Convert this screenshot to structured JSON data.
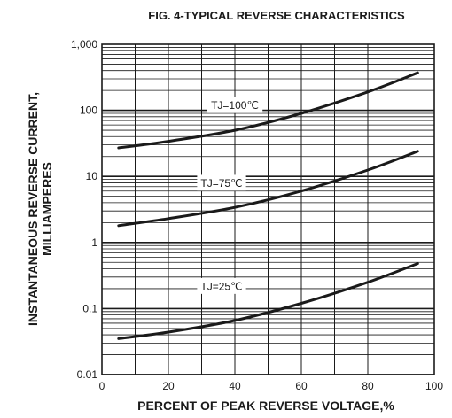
{
  "chart_data": {
    "type": "line",
    "title": "FIG. 4-TYPICAL REVERSE CHARACTERISTICS",
    "xlabel": "PERCENT OF PEAK REVERSE VOLTAGE,%",
    "ylabel_lines": [
      "INSTANTANEOUS REVERSE CURRENT,",
      "MILLIAMPERES"
    ],
    "xlim": [
      0,
      100
    ],
    "ylim": [
      0.01,
      1000
    ],
    "yscale": "log",
    "grid": true,
    "x_ticks": [
      0,
      20,
      40,
      60,
      80,
      100
    ],
    "x_tick_labels": [
      "0",
      "20",
      "40",
      "60",
      "80",
      "100"
    ],
    "y_ticks": [
      0.01,
      0.1,
      1,
      10,
      100,
      1000
    ],
    "y_tick_labels": [
      "0.01",
      "0.1",
      "1",
      "10",
      "100",
      "1,000"
    ],
    "series": [
      {
        "name": "TJ=100℃",
        "x": [
          5,
          20,
          40,
          60,
          80,
          95
        ],
        "y": [
          27,
          34,
          50,
          90,
          190,
          370
        ]
      },
      {
        "name": "TJ=75℃",
        "x": [
          5,
          20,
          40,
          60,
          80,
          95
        ],
        "y": [
          1.8,
          2.3,
          3.4,
          6,
          12.5,
          24
        ]
      },
      {
        "name": "TJ=25℃",
        "x": [
          5,
          20,
          40,
          60,
          80,
          95
        ],
        "y": [
          0.035,
          0.044,
          0.066,
          0.12,
          0.25,
          0.48
        ]
      }
    ],
    "curve_labels": [
      {
        "series": 0,
        "x": 40,
        "y": 120
      },
      {
        "series": 1,
        "x": 36,
        "y": 8
      },
      {
        "series": 2,
        "x": 36,
        "y": 0.22
      }
    ],
    "colors": {
      "ink": "#1a1a1a",
      "background": "#ffffff"
    }
  }
}
